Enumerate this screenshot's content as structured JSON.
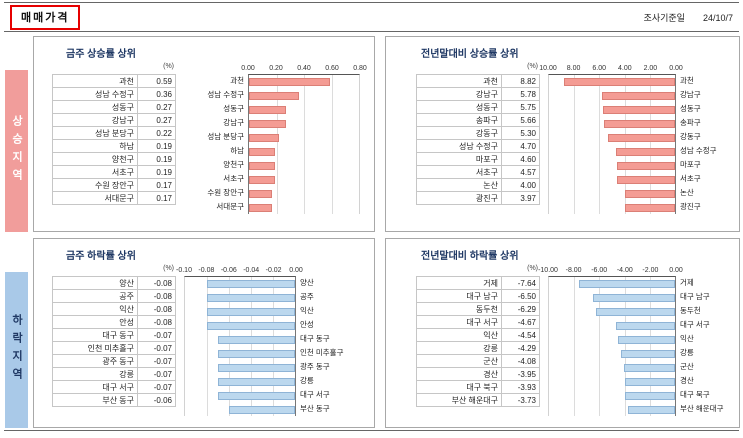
{
  "header": {
    "title": "매매가격",
    "survey_label": "조사기준일",
    "survey_date": "24/10/7"
  },
  "colors": {
    "title_navy": "#1F3864",
    "header_box_border": "#E60000",
    "rising_tab_bg": "#F19D9B",
    "rising_tab_text": "#FFFFFF",
    "falling_tab_bg": "#A9C9E8",
    "falling_tab_text": "#1F3864",
    "rising_bar_fill": "#F49C94",
    "rising_bar_border": "#DB7F76",
    "falling_bar_fill": "#BCD8EE",
    "falling_bar_border": "#8FB4D6"
  },
  "sections": [
    {
      "id": "rising",
      "tab": "상승지역",
      "tab_bg": "#F19D9B",
      "tab_text": "#FFFFFF",
      "bar_fill": "#F49C94",
      "bar_border": "#DB7F76",
      "chart_refs": [
        0,
        1
      ]
    },
    {
      "id": "falling",
      "tab": "하락지역",
      "tab_bg": "#A9C9E8",
      "tab_text": "#1F3864",
      "bar_fill": "#BCD8EE",
      "bar_border": "#8FB4D6",
      "chart_refs": [
        2,
        3
      ]
    }
  ],
  "chart_data": [
    {
      "id": "weekly-rise",
      "type": "bar",
      "title": "금주 상승률 상위",
      "unit": "(%)",
      "section": "상승지역",
      "categories": [
        "과천",
        "성남 수정구",
        "성동구",
        "강남구",
        "성남 분당구",
        "하남",
        "양천구",
        "서초구",
        "수원 장안구",
        "서대문구"
      ],
      "values": [
        0.59,
        0.36,
        0.27,
        0.27,
        0.22,
        0.19,
        0.19,
        0.19,
        0.17,
        0.17
      ],
      "xlim": [
        0,
        0.8
      ],
      "axis_ticks": [
        "0.00",
        "0.20",
        "0.40",
        "0.60",
        "0.80"
      ],
      "bar_direction": "right",
      "label_side": "left",
      "grid": true,
      "legend": "none"
    },
    {
      "id": "ytd-rise",
      "type": "bar",
      "title": "전년말대비 상승률 상위",
      "unit": "(%)",
      "section": "상승지역",
      "categories": [
        "과천",
        "강남구",
        "성동구",
        "송파구",
        "강동구",
        "성남 수정구",
        "마포구",
        "서초구",
        "논산",
        "광진구"
      ],
      "values": [
        8.82,
        5.78,
        5.75,
        5.66,
        5.3,
        4.7,
        4.6,
        4.57,
        4.0,
        3.97
      ],
      "xlim": [
        10,
        0
      ],
      "axis_ticks": [
        "10.00",
        "8.00",
        "6.00",
        "4.00",
        "2.00",
        "0.00"
      ],
      "bar_direction": "left",
      "label_side": "right",
      "grid": true,
      "legend": "none"
    },
    {
      "id": "weekly-fall",
      "type": "bar",
      "title": "금주 하락률 상위",
      "unit": "(%)",
      "section": "하락지역",
      "categories": [
        "양산",
        "공주",
        "익산",
        "안성",
        "대구 동구",
        "인천 미추홀구",
        "광주 동구",
        "강릉",
        "대구 서구",
        "부산 동구"
      ],
      "values": [
        -0.08,
        -0.08,
        -0.08,
        -0.08,
        -0.07,
        -0.07,
        -0.07,
        -0.07,
        -0.07,
        -0.06
      ],
      "xlim": [
        -0.1,
        0
      ],
      "axis_ticks": [
        "-0.10",
        "-0.08",
        "-0.06",
        "-0.04",
        "-0.02",
        "0.00"
      ],
      "bar_direction": "left",
      "label_side": "right",
      "grid": true,
      "legend": "none"
    },
    {
      "id": "ytd-fall",
      "type": "bar",
      "title": "전년말대비 하락률 상위",
      "unit": "(%)",
      "section": "하락지역",
      "categories": [
        "거제",
        "대구 남구",
        "동두천",
        "대구 서구",
        "익산",
        "강릉",
        "군산",
        "경산",
        "대구 북구",
        "부산 해운대구"
      ],
      "values": [
        -7.64,
        -6.5,
        -6.29,
        -4.67,
        -4.54,
        -4.29,
        -4.08,
        -3.95,
        -3.93,
        -3.73
      ],
      "xlim": [
        -10,
        0
      ],
      "axis_ticks": [
        "-10.00",
        "-8.00",
        "-6.00",
        "-4.00",
        "-2.00",
        "0.00"
      ],
      "bar_direction": "left",
      "label_side": "right",
      "grid": true,
      "legend": "none"
    }
  ]
}
